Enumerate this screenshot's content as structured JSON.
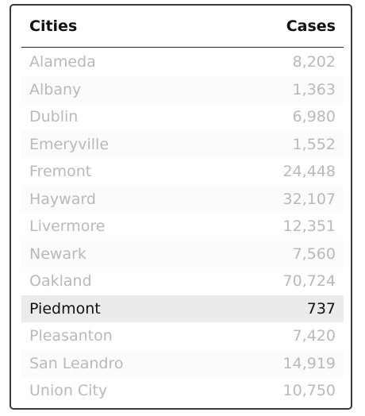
{
  "table": {
    "headers": {
      "city": "Cities",
      "cases": "Cases"
    },
    "rows": [
      {
        "city": "Alameda",
        "cases": "8,202",
        "selected": false
      },
      {
        "city": "Albany",
        "cases": "1,363",
        "selected": false
      },
      {
        "city": "Dublin",
        "cases": "6,980",
        "selected": false
      },
      {
        "city": "Emeryville",
        "cases": "1,552",
        "selected": false
      },
      {
        "city": "Fremont",
        "cases": "24,448",
        "selected": false
      },
      {
        "city": "Hayward",
        "cases": "32,107",
        "selected": false
      },
      {
        "city": "Livermore",
        "cases": "12,351",
        "selected": false
      },
      {
        "city": "Newark",
        "cases": "7,560",
        "selected": false
      },
      {
        "city": "Oakland",
        "cases": "70,724",
        "selected": false
      },
      {
        "city": "Piedmont",
        "cases": "737",
        "selected": true
      },
      {
        "city": "Pleasanton",
        "cases": "7,420",
        "selected": false
      },
      {
        "city": "San Leandro",
        "cases": "14,919",
        "selected": false
      },
      {
        "city": "Union City",
        "cases": "10,750",
        "selected": false
      }
    ]
  },
  "colors": {
    "dimmed_text": "#b9b9b9",
    "selected_text": "#111111",
    "selected_background": "#ebebeb",
    "border": "#3a3a3a"
  }
}
